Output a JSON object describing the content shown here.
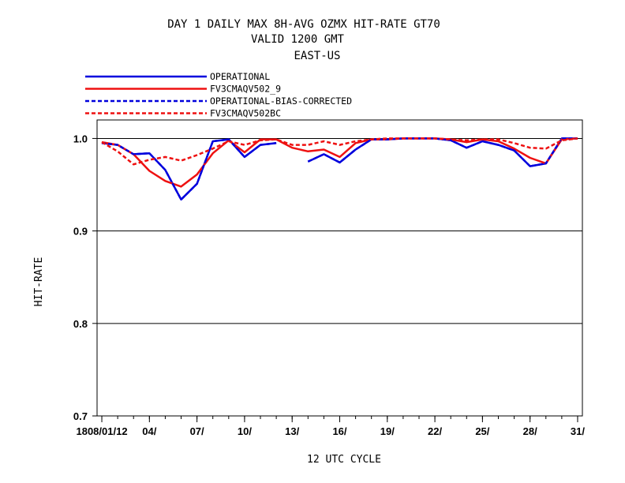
{
  "chart_data": {
    "type": "line",
    "title_lines": [
      "DAY 1 DAILY MAX   8H-AVG OZMX HIT-RATE GT70",
      "VALID 1200 GMT",
      "EAST-US"
    ],
    "xlabel": "12 UTC CYCLE",
    "ylabel": "HIT-RATE",
    "ylim": [
      0.7,
      1.02
    ],
    "xlim": [
      0.7,
      31.3
    ],
    "y_ticks": [
      {
        "value": 0.7,
        "label": "0.7"
      },
      {
        "value": 0.8,
        "label": "0.8"
      },
      {
        "value": 0.9,
        "label": "0.9"
      },
      {
        "value": 1.0,
        "label": "1.0"
      }
    ],
    "x_ticks": [
      {
        "value": 1,
        "label": "1808/01/12"
      },
      {
        "value": 4,
        "label": "04/"
      },
      {
        "value": 7,
        "label": "07/"
      },
      {
        "value": 10,
        "label": "10/"
      },
      {
        "value": 13,
        "label": "13/"
      },
      {
        "value": 16,
        "label": "16/"
      },
      {
        "value": 19,
        "label": "19/"
      },
      {
        "value": 22,
        "label": "22/"
      },
      {
        "value": 25,
        "label": "25/"
      },
      {
        "value": 28,
        "label": "28/"
      },
      {
        "value": 31,
        "label": "31/"
      }
    ],
    "gridlines_y": [
      0.8,
      0.9,
      1.0
    ],
    "legend_position": "top-left",
    "x": [
      1,
      2,
      3,
      4,
      5,
      6,
      7,
      8,
      9,
      10,
      11,
      12,
      13,
      14,
      15,
      16,
      17,
      18,
      19,
      20,
      21,
      22,
      23,
      24,
      25,
      26,
      27,
      28,
      29,
      30,
      31
    ],
    "series": [
      {
        "name": "OPERATIONAL",
        "color": "#0000dd",
        "dash": "solid",
        "values": [
          0.995,
          0.993,
          0.983,
          0.984,
          0.966,
          0.934,
          0.951,
          0.997,
          0.999,
          0.98,
          0.993,
          0.995,
          null,
          0.975,
          0.983,
          0.974,
          0.988,
          0.999,
          0.999,
          1.0,
          1.0,
          1.0,
          0.998,
          0.99,
          0.997,
          0.993,
          0.987,
          0.97,
          0.973,
          1.0,
          1.0
        ]
      },
      {
        "name": "FV3CMAQV502_9",
        "color": "#ee1111",
        "dash": "solid",
        "values": [
          0.996,
          0.993,
          0.983,
          0.965,
          0.954,
          0.948,
          0.961,
          0.984,
          0.998,
          0.985,
          0.999,
          0.999,
          0.99,
          0.986,
          0.988,
          0.98,
          0.995,
          0.999,
          0.999,
          1.0,
          1.0,
          1.0,
          0.999,
          0.996,
          0.999,
          0.997,
          0.989,
          0.979,
          0.973,
          0.999,
          1.0
        ]
      },
      {
        "name": "OPERATIONAL-BIAS-CORRECTED",
        "color": "#0000dd",
        "dash": "dashed",
        "values": [
          0.995,
          0.993,
          0.983,
          0.984,
          0.966,
          0.934,
          0.951,
          0.997,
          0.999,
          0.98,
          0.993,
          0.995,
          null,
          0.975,
          0.983,
          0.974,
          0.988,
          0.999,
          0.999,
          1.0,
          1.0,
          1.0,
          0.998,
          0.99,
          0.997,
          0.993,
          0.987,
          0.97,
          0.973,
          1.0,
          1.0
        ]
      },
      {
        "name": "FV3CMAQV502BC",
        "color": "#ee1111",
        "dash": "dashed",
        "values": [
          0.996,
          0.986,
          0.972,
          0.977,
          0.98,
          0.976,
          0.982,
          0.989,
          0.997,
          0.993,
          0.998,
          0.999,
          0.993,
          0.993,
          0.997,
          0.993,
          0.997,
          0.999,
          1.0,
          1.0,
          1.0,
          1.0,
          0.999,
          0.998,
          0.999,
          0.999,
          0.995,
          0.99,
          0.989,
          0.998,
          1.0
        ]
      }
    ]
  }
}
